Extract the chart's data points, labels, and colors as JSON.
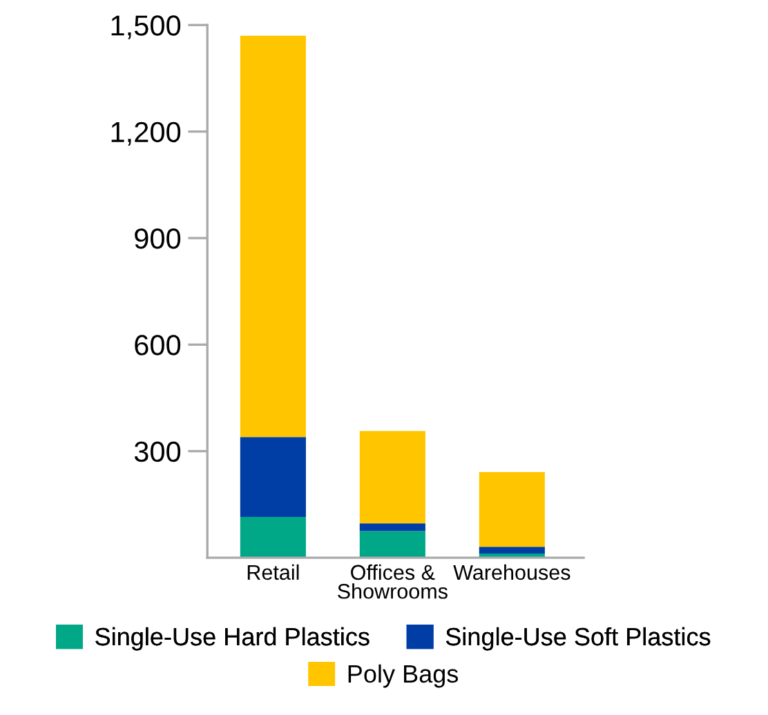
{
  "chart_data": {
    "type": "bar",
    "stacked": true,
    "categories": [
      "Retail",
      "Offices &\nShowrooms",
      "Warehouses"
    ],
    "series": [
      {
        "name": "Single-Use Hard Plastics",
        "color": "#00a887",
        "values": [
          115,
          75,
          12
        ]
      },
      {
        "name": "Single-Use Soft Plastics",
        "color": "#003da5",
        "values": [
          225,
          22,
          19
        ]
      },
      {
        "name": "Poly Bags",
        "color": "#ffc600",
        "values": [
          1130,
          260,
          210
        ]
      }
    ],
    "ylim": [
      0,
      1500
    ],
    "yticks": [
      {
        "value": 300,
        "label": "300"
      },
      {
        "value": 600,
        "label": "600"
      },
      {
        "value": 900,
        "label": "900"
      },
      {
        "value": 1200,
        "label": "1,200"
      },
      {
        "value": 1500,
        "label": "1,500"
      }
    ],
    "grid": false,
    "legend": "bottom"
  }
}
